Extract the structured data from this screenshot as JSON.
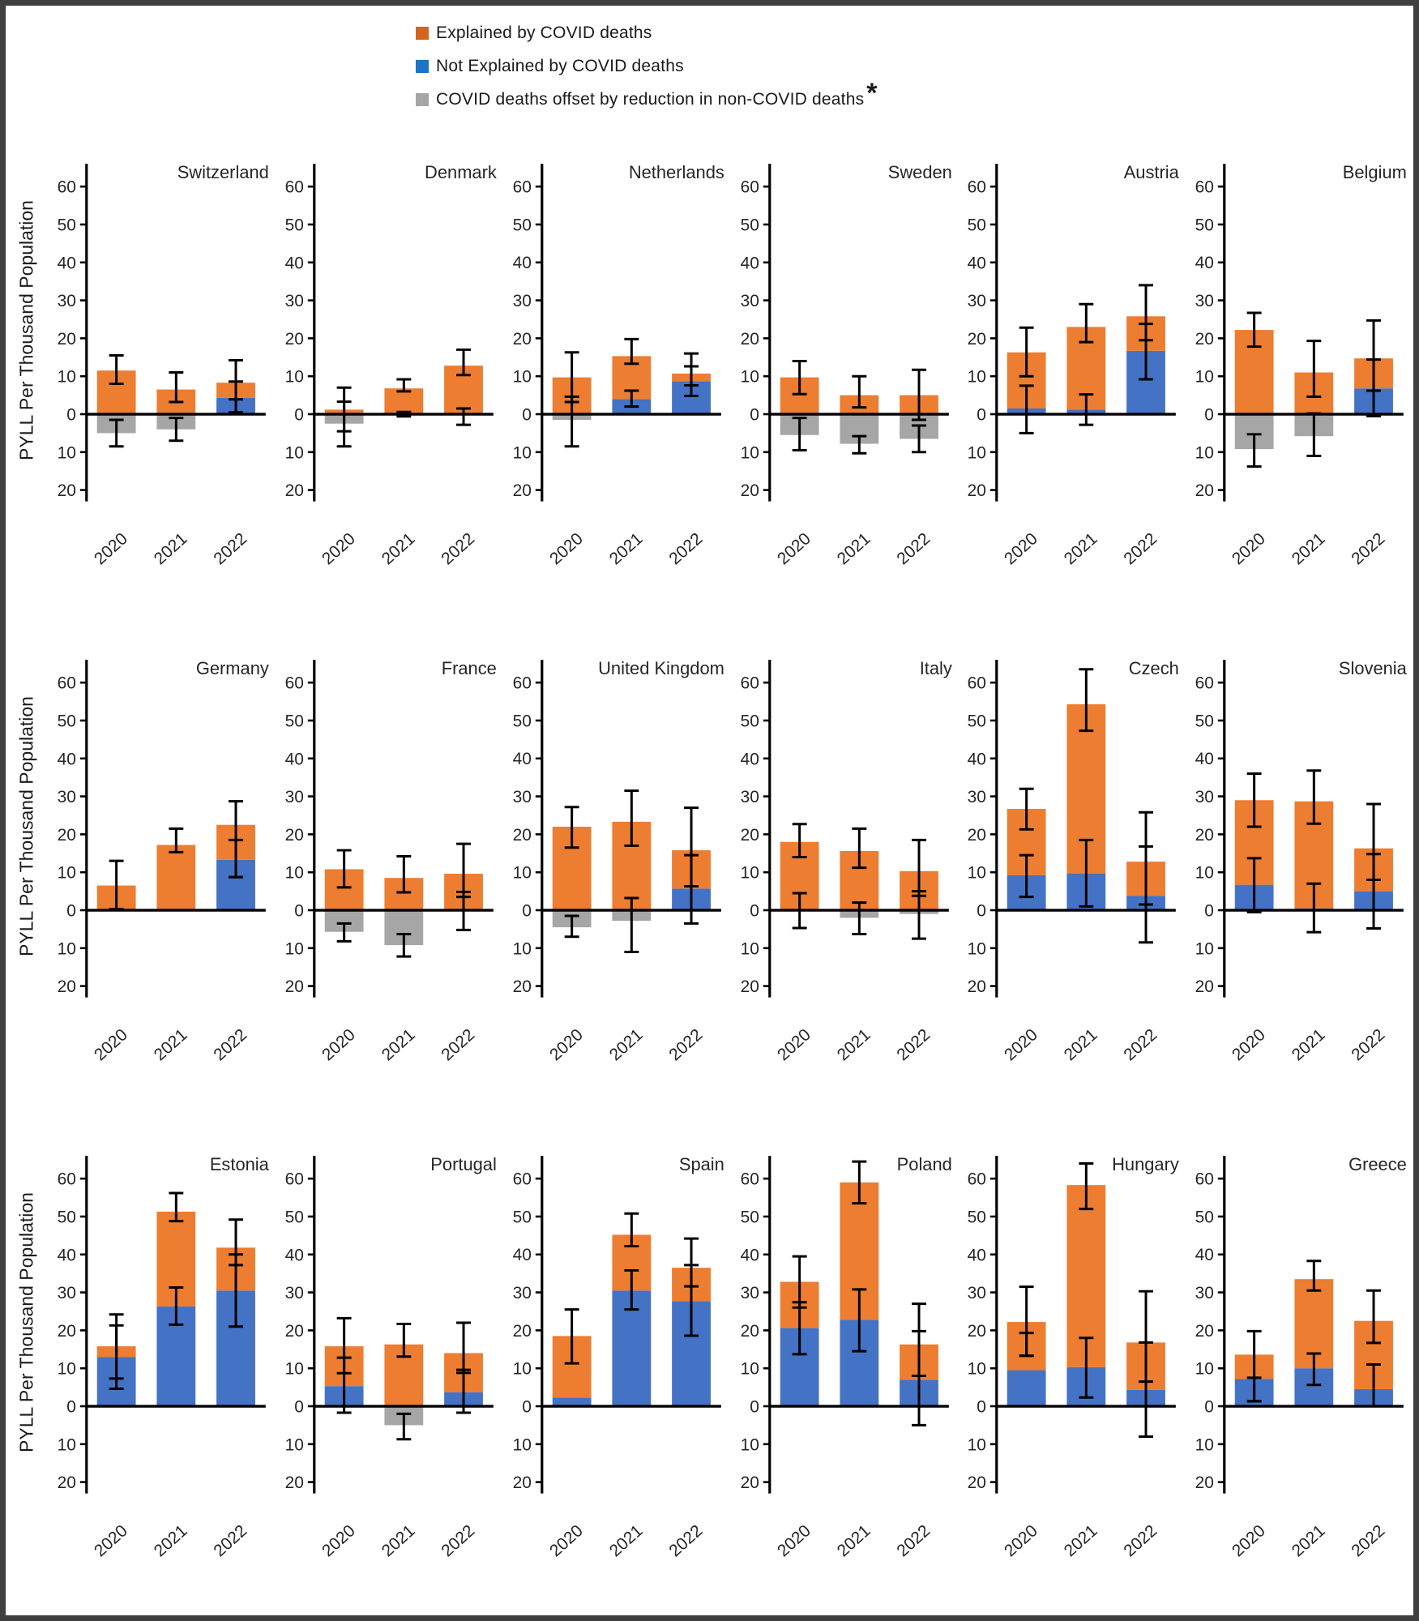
{
  "legend": {
    "items": [
      {
        "label": "Explained by COVID deaths",
        "color": "#D2641E"
      },
      {
        "label": "Not Explained by COVID deaths",
        "color": "#1E73C2"
      },
      {
        "label": "COVID deaths offset by reduction in non-COVID deaths",
        "color": "#A6A6A6"
      }
    ],
    "asterisk": "*"
  },
  "chart_data": {
    "type": "bar",
    "stacked": true,
    "categories": [
      "2020",
      "2021",
      "2022"
    ],
    "ylabel": "PYLL Per Thousand Population",
    "ylim": [
      -23,
      66
    ],
    "yticks": [
      60,
      50,
      40,
      30,
      20,
      10,
      0,
      -10,
      -20
    ],
    "grid": false,
    "legend_position": "top",
    "error_bars_shown": true,
    "layout": {
      "rows": 3,
      "cols": 6
    },
    "series_names": [
      "Not Explained by COVID deaths",
      "Explained by COVID deaths",
      "COVID deaths offset by reduction in non-COVID deaths"
    ],
    "colors": {
      "covid": "#ED7D31",
      "non_covid": "#4472C4",
      "offset": "#A6A6A6",
      "axis": "#000000",
      "error": "#000000"
    },
    "panels": [
      {
        "country": "Switzerland",
        "years": [
          {
            "year": "2020",
            "non_covid": 0,
            "covid": 11.5,
            "offset": -5,
            "error_bars": [
              [
                8,
                15.5
              ],
              [
                -8.5,
                -1.5
              ]
            ]
          },
          {
            "year": "2021",
            "non_covid": 0,
            "covid": 6.5,
            "offset": -4,
            "error_bars": [
              [
                3.2,
                11
              ],
              [
                -7,
                -1
              ]
            ]
          },
          {
            "year": "2022",
            "non_covid": 4.3,
            "covid": 4.0,
            "offset": 0,
            "error_bars": [
              [
                0.5,
                14.2
              ],
              [
                3.9,
                8.6
              ]
            ]
          }
        ]
      },
      {
        "country": "Denmark",
        "years": [
          {
            "year": "2020",
            "non_covid": 0,
            "covid": 1.2,
            "offset": -2.5,
            "error_bars": [
              [
                -4.5,
                7
              ],
              [
                -8.5,
                3.3
              ]
            ]
          },
          {
            "year": "2021",
            "non_covid": 0,
            "covid": 6.8,
            "offset": 0,
            "error_bars": [
              [
                6,
                9.2
              ],
              [
                -0.6,
                0.6
              ]
            ]
          },
          {
            "year": "2022",
            "non_covid": 0,
            "covid": 12.8,
            "offset": 0,
            "error_bars": [
              [
                10.3,
                17
              ],
              [
                -2.8,
                1.5
              ]
            ]
          }
        ]
      },
      {
        "country": "Netherlands",
        "years": [
          {
            "year": "2020",
            "non_covid": 0,
            "covid": 9.7,
            "offset": -1.5,
            "error_bars": [
              [
                -8.5,
                16.3
              ],
              [
                3.2,
                4.6
              ]
            ]
          },
          {
            "year": "2021",
            "non_covid": 4.0,
            "covid": 11.3,
            "offset": 0,
            "error_bars": [
              [
                13.3,
                19.8
              ],
              [
                2,
                6.2
              ]
            ]
          },
          {
            "year": "2022",
            "non_covid": 8.7,
            "covid": 2.0,
            "offset": 0,
            "error_bars": [
              [
                4.8,
                16
              ],
              [
                7.6,
                12.6
              ]
            ]
          }
        ]
      },
      {
        "country": "Sweden",
        "years": [
          {
            "year": "2020",
            "non_covid": 0,
            "covid": 9.7,
            "offset": -5.5,
            "error_bars": [
              [
                5.3,
                14
              ],
              [
                -9.5,
                -1
              ]
            ]
          },
          {
            "year": "2021",
            "non_covid": 0,
            "covid": 5.0,
            "offset": -7.8,
            "error_bars": [
              [
                1.8,
                10
              ],
              [
                -10.3,
                -5.8
              ]
            ]
          },
          {
            "year": "2022",
            "non_covid": 0,
            "covid": 5.0,
            "offset": -6.5,
            "error_bars": [
              [
                -1.5,
                11.7
              ],
              [
                -10,
                -3
              ]
            ]
          }
        ]
      },
      {
        "country": "Austria",
        "years": [
          {
            "year": "2020",
            "non_covid": 1.5,
            "covid": 14.8,
            "offset": 0,
            "error_bars": [
              [
                10,
                22.8
              ],
              [
                -5,
                7.5
              ]
            ]
          },
          {
            "year": "2021",
            "non_covid": 1.2,
            "covid": 21.8,
            "offset": 0,
            "error_bars": [
              [
                19,
                29
              ],
              [
                -2.8,
                5.2
              ]
            ]
          },
          {
            "year": "2022",
            "non_covid": 16.7,
            "covid": 9.1,
            "offset": 0,
            "error_bars": [
              [
                19.5,
                34
              ],
              [
                9.2,
                23.8
              ]
            ]
          }
        ]
      },
      {
        "country": "Belgium",
        "years": [
          {
            "year": "2020",
            "non_covid": 0,
            "covid": 22.2,
            "offset": -9.2,
            "error_bars": [
              [
                17.8,
                26.7
              ],
              [
                -13.8,
                -5.3
              ]
            ]
          },
          {
            "year": "2021",
            "non_covid": 0,
            "covid": 11.0,
            "offset": -5.8,
            "error_bars": [
              [
                4.6,
                19.3
              ],
              [
                -11,
                0.2
              ]
            ]
          },
          {
            "year": "2022",
            "non_covid": 6.8,
            "covid": 7.9,
            "offset": 0,
            "error_bars": [
              [
                -0.5,
                24.7
              ],
              [
                6.2,
                14.4
              ]
            ]
          }
        ]
      },
      {
        "country": "Germany",
        "years": [
          {
            "year": "2020",
            "non_covid": 0.3,
            "covid": 6.2,
            "offset": 0,
            "error_bars": [
              [
                0.3,
                13
              ]
            ]
          },
          {
            "year": "2021",
            "non_covid": 0,
            "covid": 17.2,
            "offset": 0,
            "error_bars": [
              [
                15.3,
                21.5
              ]
            ]
          },
          {
            "year": "2022",
            "non_covid": 13.3,
            "covid": 9.2,
            "offset": 0,
            "error_bars": [
              [
                8.7,
                28.7
              ],
              [
                8.7,
                18.5
              ]
            ]
          }
        ]
      },
      {
        "country": "France",
        "years": [
          {
            "year": "2020",
            "non_covid": 0,
            "covid": 10.8,
            "offset": -5.7,
            "error_bars": [
              [
                6,
                15.8
              ],
              [
                -8.2,
                -3.5
              ]
            ]
          },
          {
            "year": "2021",
            "non_covid": 0,
            "covid": 8.5,
            "offset": -9.2,
            "error_bars": [
              [
                4.7,
                14.2
              ],
              [
                -12.2,
                -6.3
              ]
            ]
          },
          {
            "year": "2022",
            "non_covid": 0,
            "covid": 9.6,
            "offset": 0,
            "error_bars": [
              [
                -5.2,
                17.5
              ],
              [
                3.5,
                4.8
              ]
            ]
          }
        ]
      },
      {
        "country": "United Kingdom",
        "years": [
          {
            "year": "2020",
            "non_covid": 0,
            "covid": 22.0,
            "offset": -4.5,
            "error_bars": [
              [
                16.5,
                27.2
              ],
              [
                -7,
                -1.5
              ]
            ]
          },
          {
            "year": "2021",
            "non_covid": 0,
            "covid": 23.3,
            "offset": -2.8,
            "error_bars": [
              [
                17,
                31.5
              ],
              [
                -11,
                3.2
              ]
            ]
          },
          {
            "year": "2022",
            "non_covid": 5.7,
            "covid": 10.1,
            "offset": 0,
            "error_bars": [
              [
                -3.5,
                27
              ],
              [
                6.3,
                14.5
              ]
            ]
          }
        ]
      },
      {
        "country": "Italy",
        "years": [
          {
            "year": "2020",
            "non_covid": 0,
            "covid": 18.0,
            "offset": 0,
            "error_bars": [
              [
                14,
                22.7
              ],
              [
                -4.7,
                4.5
              ]
            ]
          },
          {
            "year": "2021",
            "non_covid": 0,
            "covid": 15.6,
            "offset": -2,
            "error_bars": [
              [
                11.2,
                21.5
              ],
              [
                -6.3,
                2
              ]
            ]
          },
          {
            "year": "2022",
            "non_covid": 0,
            "covid": 10.3,
            "offset": -1,
            "error_bars": [
              [
                3.8,
                18.5
              ],
              [
                -7.5,
                5
              ]
            ]
          }
        ]
      },
      {
        "country": "Czech",
        "years": [
          {
            "year": "2020",
            "non_covid": 9.2,
            "covid": 17.5,
            "offset": 0,
            "error_bars": [
              [
                21.3,
                32
              ],
              [
                3.5,
                14.5
              ]
            ]
          },
          {
            "year": "2021",
            "non_covid": 9.7,
            "covid": 44.6,
            "offset": 0,
            "error_bars": [
              [
                47.3,
                63.5
              ],
              [
                1,
                18.5
              ]
            ]
          },
          {
            "year": "2022",
            "non_covid": 3.8,
            "covid": 9.0,
            "offset": 0,
            "error_bars": [
              [
                -8.5,
                25.8
              ],
              [
                1.5,
                16.8
              ]
            ]
          }
        ]
      },
      {
        "country": "Slovenia",
        "years": [
          {
            "year": "2020",
            "non_covid": 6.7,
            "covid": 22.3,
            "offset": 0,
            "error_bars": [
              [
                22,
                36
              ],
              [
                -0.5,
                13.7
              ]
            ]
          },
          {
            "year": "2021",
            "non_covid": 0.5,
            "covid": 28.2,
            "offset": 0,
            "error_bars": [
              [
                22.8,
                36.8
              ],
              [
                -5.8,
                7
              ]
            ]
          },
          {
            "year": "2022",
            "non_covid": 5.0,
            "covid": 11.3,
            "offset": 0,
            "error_bars": [
              [
                8,
                28
              ],
              [
                -4.8,
                14.8
              ]
            ]
          }
        ]
      },
      {
        "country": "Estonia",
        "years": [
          {
            "year": "2020",
            "non_covid": 13.0,
            "covid": 2.8,
            "offset": 0,
            "error_bars": [
              [
                4.6,
                24.2
              ],
              [
                7.3,
                21.3
              ]
            ]
          },
          {
            "year": "2021",
            "non_covid": 26.3,
            "covid": 25.0,
            "offset": 0,
            "error_bars": [
              [
                48.8,
                56.2
              ],
              [
                21.5,
                31.3
              ]
            ]
          },
          {
            "year": "2022",
            "non_covid": 30.5,
            "covid": 11.3,
            "offset": 0,
            "error_bars": [
              [
                37.2,
                49.2
              ],
              [
                21,
                40
              ]
            ]
          }
        ]
      },
      {
        "country": "Portugal",
        "years": [
          {
            "year": "2020",
            "non_covid": 5.3,
            "covid": 10.5,
            "offset": 0,
            "error_bars": [
              [
                -1.7,
                23.2
              ],
              [
                8.7,
                12.8
              ]
            ]
          },
          {
            "year": "2021",
            "non_covid": 0,
            "covid": 16.3,
            "offset": -5,
            "error_bars": [
              [
                13.1,
                21.7
              ],
              [
                -8.7,
                -2
              ]
            ]
          },
          {
            "year": "2022",
            "non_covid": 3.7,
            "covid": 10.3,
            "offset": 0,
            "error_bars": [
              [
                -1.7,
                22
              ],
              [
                8.8,
                9.6
              ]
            ]
          }
        ]
      },
      {
        "country": "Spain",
        "years": [
          {
            "year": "2020",
            "non_covid": 2.3,
            "covid": 16.2,
            "offset": 0,
            "error_bars": [
              [
                11.3,
                25.5
              ]
            ]
          },
          {
            "year": "2021",
            "non_covid": 30.5,
            "covid": 14.7,
            "offset": 0,
            "error_bars": [
              [
                42.2,
                50.8
              ],
              [
                25.5,
                35.8
              ]
            ]
          },
          {
            "year": "2022",
            "non_covid": 27.7,
            "covid": 8.8,
            "offset": 0,
            "error_bars": [
              [
                31.6,
                44.2
              ],
              [
                18.6,
                37.2
              ]
            ]
          }
        ]
      },
      {
        "country": "Poland",
        "years": [
          {
            "year": "2020",
            "non_covid": 20.6,
            "covid": 12.2,
            "offset": 0,
            "error_bars": [
              [
                26,
                39.5
              ],
              [
                13.7,
                27.4
              ]
            ]
          },
          {
            "year": "2021",
            "non_covid": 22.8,
            "covid": 36.2,
            "offset": 0,
            "error_bars": [
              [
                53.5,
                64.5
              ],
              [
                14.5,
                30.8
              ]
            ]
          },
          {
            "year": "2022",
            "non_covid": 7.0,
            "covid": 9.3,
            "offset": 0,
            "error_bars": [
              [
                -5,
                27
              ],
              [
                8,
                19.8
              ]
            ]
          }
        ]
      },
      {
        "country": "Hungary",
        "years": [
          {
            "year": "2020",
            "non_covid": 9.5,
            "covid": 12.7,
            "offset": 0,
            "error_bars": [
              [
                13.3,
                31.5
              ],
              [
                13.3,
                19.3
              ]
            ]
          },
          {
            "year": "2021",
            "non_covid": 10.3,
            "covid": 48.0,
            "offset": 0,
            "error_bars": [
              [
                52,
                64
              ],
              [
                2.3,
                18
              ]
            ]
          },
          {
            "year": "2022",
            "non_covid": 4.3,
            "covid": 12.5,
            "offset": 0,
            "error_bars": [
              [
                -8,
                30.3
              ],
              [
                6.5,
                16.8
              ]
            ]
          }
        ]
      },
      {
        "country": "Greece",
        "years": [
          {
            "year": "2020",
            "non_covid": 7.2,
            "covid": 6.4,
            "offset": 0,
            "error_bars": [
              [
                1.3,
                19.8
              ],
              [
                1.3,
                7.5
              ]
            ]
          },
          {
            "year": "2021",
            "non_covid": 10.0,
            "covid": 23.5,
            "offset": 0,
            "error_bars": [
              [
                30.5,
                38.3
              ],
              [
                5.6,
                13.9
              ]
            ]
          },
          {
            "year": "2022",
            "non_covid": 4.5,
            "covid": 18.0,
            "offset": 0,
            "error_bars": [
              [
                16.7,
                30.5
              ],
              [
                0,
                11
              ]
            ]
          }
        ]
      }
    ]
  }
}
